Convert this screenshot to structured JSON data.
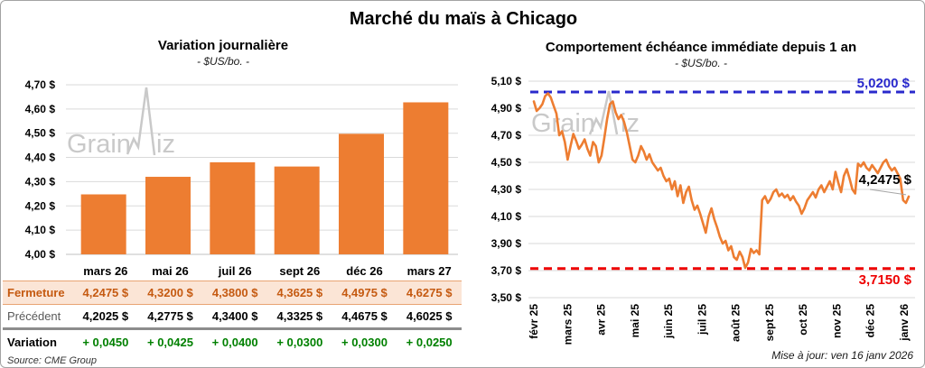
{
  "page_title": "Marché du maïs à Chicago",
  "colors": {
    "orange": "#ED7D31",
    "dash_blue": "#2929CC",
    "dash_red": "#EE0000",
    "variation_green": "#008000",
    "fermeture_bg": "#FBE5D6",
    "fermeture_text": "#C55A11",
    "grid_gray": "#DADADA",
    "watermark_gray": "#C9C9C9"
  },
  "chart_data": [
    {
      "type": "bar",
      "title": "Variation journalière",
      "subtitle": "- $US/bo. -",
      "categories": [
        "mars 26",
        "mai 26",
        "juil 26",
        "sept 26",
        "déc 26",
        "mars 27"
      ],
      "values": [
        4.2475,
        4.32,
        4.38,
        4.3625,
        4.4975,
        4.6275
      ],
      "ylim": [
        4.0,
        4.7
      ],
      "ytick_labels": [
        "4,70 $",
        "4,60 $",
        "4,50 $",
        "4,40 $",
        "4,30 $",
        "4,20 $",
        "4,10 $",
        "4,00 $"
      ],
      "grid": true,
      "bar_color": "#ED7D31",
      "watermark": [
        "Grain",
        "iz"
      ]
    },
    {
      "type": "line",
      "title": "Comportement échéance immédiate depuis 1 an",
      "subtitle": "- $US/bo. -",
      "x_labels": [
        "févr 25",
        "mars 25",
        "avr 25",
        "mai 25",
        "juin 25",
        "juil 25",
        "août 25",
        "sept 25",
        "oct 25",
        "nov 25",
        "déc 25",
        "janv 26"
      ],
      "ylim": [
        3.5,
        5.1
      ],
      "ytick_labels": [
        "5,10 $",
        "4,90 $",
        "4,70 $",
        "4,50 $",
        "4,30 $",
        "4,10 $",
        "3,90 $",
        "3,70 $",
        "3,50 $"
      ],
      "grid": true,
      "line_color": "#ED7D31",
      "series": [
        {
          "name": "échéance immédiate",
          "values": [
            4.95,
            4.88,
            4.9,
            4.93,
            4.99,
            5.01,
            4.98,
            4.92,
            4.86,
            4.7,
            4.73,
            4.65,
            4.52,
            4.62,
            4.71,
            4.66,
            4.6,
            4.63,
            4.67,
            4.6,
            4.55,
            4.65,
            4.62,
            4.5,
            4.55,
            4.68,
            4.82,
            4.93,
            4.95,
            4.87,
            4.82,
            4.85,
            4.8,
            4.72,
            4.62,
            4.52,
            4.5,
            4.55,
            4.62,
            4.58,
            4.52,
            4.56,
            4.5,
            4.47,
            4.44,
            4.46,
            4.4,
            4.36,
            4.38,
            4.3,
            4.36,
            4.25,
            4.33,
            4.2,
            4.28,
            4.32,
            4.22,
            4.15,
            4.18,
            4.12,
            4.05,
            3.98,
            4.1,
            4.16,
            4.08,
            4.02,
            3.95,
            3.9,
            3.92,
            3.85,
            3.88,
            3.8,
            3.78,
            3.84,
            3.8,
            3.72,
            3.76,
            3.86,
            3.83,
            3.85,
            3.82,
            4.22,
            4.25,
            4.2,
            4.23,
            4.28,
            4.3,
            4.25,
            4.27,
            4.24,
            4.26,
            4.22,
            4.25,
            4.21,
            4.18,
            4.12,
            4.16,
            4.22,
            4.25,
            4.28,
            4.24,
            4.3,
            4.33,
            4.28,
            4.32,
            4.36,
            4.3,
            4.43,
            4.35,
            4.28,
            4.4,
            4.45,
            4.38,
            4.3,
            4.27,
            4.49,
            4.47,
            4.5,
            4.46,
            4.44,
            4.48,
            4.45,
            4.42,
            4.46,
            4.5,
            4.52,
            4.47,
            4.44,
            4.46,
            4.42,
            4.38,
            4.22,
            4.2,
            4.2475
          ]
        }
      ],
      "annotations": {
        "resistance": {
          "label": "5,0200 $",
          "value": 5.02
        },
        "support": {
          "label": "3,7150 $",
          "value": 3.715
        },
        "last": {
          "label": "4,2475 $",
          "value": 4.2475
        }
      },
      "watermark": [
        "Grain",
        "iz"
      ]
    }
  ],
  "table": {
    "header": [
      "",
      "mars 26",
      "mai 26",
      "juil 26",
      "sept 26",
      "déc 26",
      "mars 27"
    ],
    "rows": [
      {
        "label": "Fermeture",
        "values": [
          "4,2475 $",
          "4,3200 $",
          "4,3800 $",
          "4,3625 $",
          "4,4975 $",
          "4,6275 $"
        ]
      },
      {
        "label": "Précédent",
        "values": [
          "4,2025 $",
          "4,2775 $",
          "4,3400 $",
          "4,3325 $",
          "4,4675 $",
          "4,6025 $"
        ]
      },
      {
        "label": "Variation",
        "values": [
          "+ 0,0450",
          "+ 0,0425",
          "+ 0,0400",
          "+ 0,0300",
          "+ 0,0300",
          "+ 0,0250"
        ]
      }
    ],
    "source": "Source: CME Group"
  },
  "footer": {
    "update_note": "Mise à jour: ven 16 janv 2026"
  }
}
